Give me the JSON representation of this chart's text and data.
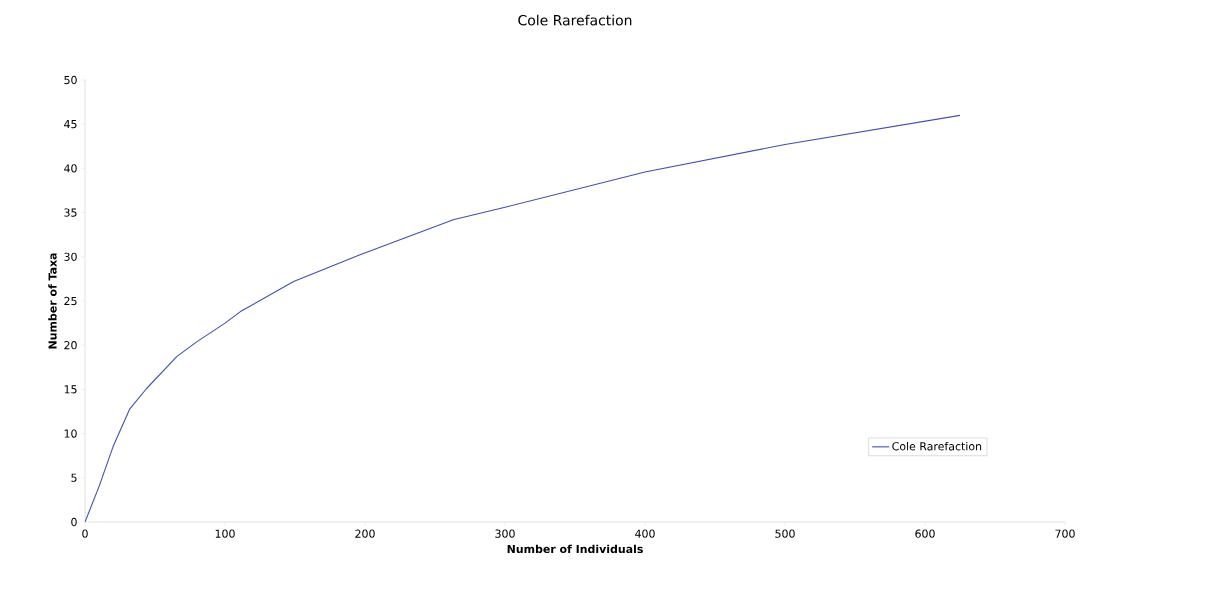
{
  "chart_data": {
    "type": "line",
    "title": "Cole Rarefaction",
    "xlabel": "Number of Individuals",
    "ylabel": "Number of Taxa",
    "x": [
      0,
      5,
      10,
      20,
      32,
      44,
      65.5,
      80,
      100,
      111,
      149,
      196,
      263,
      300,
      400,
      500,
      625
    ],
    "series": [
      {
        "name": "Cole Rarefaction",
        "color": "#4050b0",
        "values": [
          0,
          2,
          4,
          8.5,
          12.8,
          15.1,
          18.7,
          20.4,
          22.5,
          23.8,
          27.2,
          30.2,
          34.2,
          35.6,
          39.6,
          42.7,
          46
        ]
      }
    ],
    "xlim": [
      0,
      700
    ],
    "xticks": [
      0,
      100,
      200,
      300,
      400,
      500,
      600,
      700
    ],
    "ylim": [
      0,
      50
    ],
    "yticks": [
      0,
      5,
      10,
      15,
      20,
      25,
      30,
      35,
      40,
      45,
      50
    ],
    "grid": false,
    "legend": "bottom right",
    "marker": "none",
    "line_style": "solid"
  }
}
